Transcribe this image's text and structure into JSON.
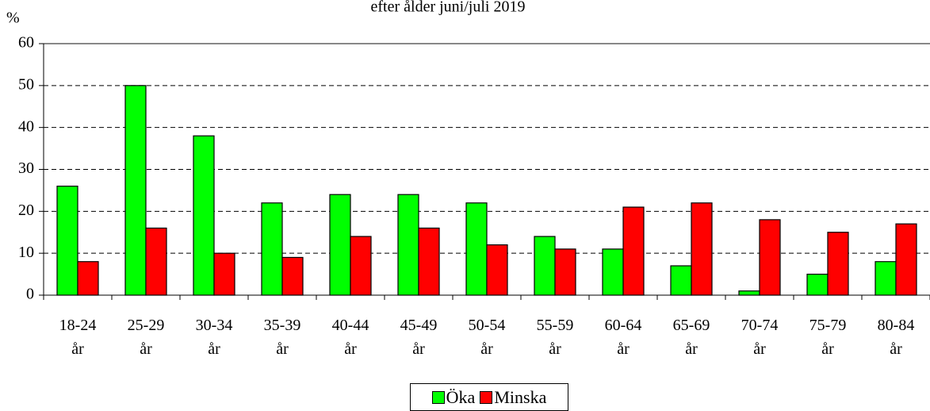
{
  "chart_data": {
    "type": "bar",
    "title": "efter ålder juni/juli 2019",
    "y_label": "%",
    "categories": [
      "18-24 år",
      "25-29 år",
      "30-34 år",
      "35-39 år",
      "40-44 år",
      "45-49 år",
      "50-54 år",
      "55-59 år",
      "60-64 år",
      "65-69 år",
      "70-74 år",
      "75-79 år",
      "80-84 år"
    ],
    "series": [
      {
        "name": "Öka",
        "color": "#00ff00",
        "values": [
          26,
          50,
          38,
          22,
          24,
          24,
          22,
          14,
          11,
          7,
          1,
          5,
          8
        ]
      },
      {
        "name": "Minska",
        "color": "#ff0000",
        "values": [
          8,
          16,
          10,
          9,
          14,
          16,
          12,
          11,
          21,
          22,
          18,
          15,
          17
        ]
      }
    ],
    "ylim": [
      0,
      60
    ],
    "yticks": [
      0,
      10,
      20,
      30,
      40,
      50,
      60
    ],
    "grid": true,
    "legend": "bottom"
  }
}
